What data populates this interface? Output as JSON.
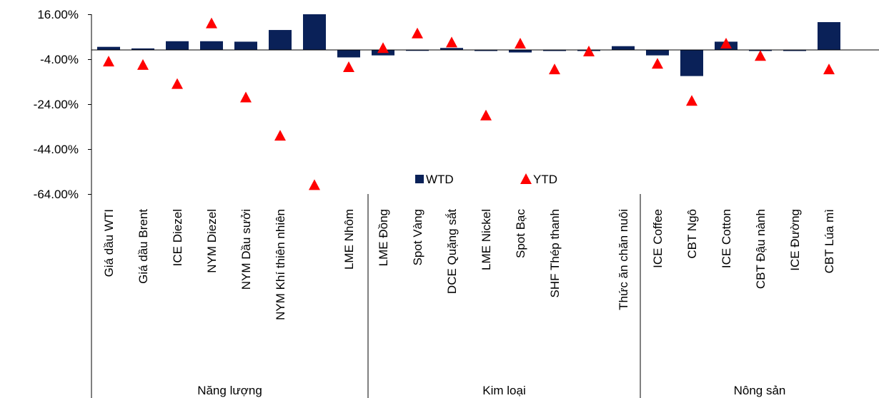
{
  "chart_data": {
    "type": "bar",
    "title": "",
    "xlabel": "",
    "ylabel": "",
    "ylim": [
      -64,
      16
    ],
    "yticks": [
      "16.00%",
      "-4.00%",
      "-24.00%",
      "-44.00%",
      "-64.00%"
    ],
    "ytick_values": [
      16,
      -4,
      -24,
      -44,
      -64
    ],
    "groups": [
      {
        "name": "Năng lượng",
        "categories": [
          "Giá dầu WTI",
          "Giá dầu Brent",
          "ICE Diezel",
          "NYM Diezel",
          "NYM Dầu sưởi",
          "NYM Khí thiên nhiên",
          ""
        ]
      },
      {
        "name": "Kim loại",
        "categories": [
          "LME Nhôm",
          "LME Đồng",
          "Spot Vàng",
          "DCE Quặng sắt",
          "LME Nickel",
          "Spot Bạc",
          "SHF Thép thanh",
          ""
        ]
      },
      {
        "name": "Nông sản",
        "categories": [
          "Thức ăn chăn nuôi",
          "ICE Coffee",
          "CBT Ngô",
          "ICE Cotton",
          "CBT Đậu nành",
          "ICE Đường",
          "CBT Lúa mì"
        ]
      }
    ],
    "series": [
      {
        "name": "WTD",
        "type": "bar",
        "color": "#0a2158",
        "values": [
          1.5,
          0.8,
          4.0,
          4.0,
          3.8,
          9.0,
          16.0,
          -3.2,
          -2.3,
          0.2,
          1.0,
          0.0,
          -1.0,
          0.0,
          0.0,
          1.8,
          -2.3,
          -11.5,
          3.8,
          0.0,
          -0.3,
          12.5
        ]
      },
      {
        "name": "YTD",
        "type": "scatter",
        "color": "#ff0000",
        "marker": "triangle",
        "values": [
          -5.0,
          -6.5,
          -15.0,
          12.0,
          -21.0,
          -38.0,
          -60.0,
          -7.5,
          1.0,
          7.5,
          3.5,
          -29.0,
          3.0,
          -8.5,
          -0.5,
          null,
          -6.0,
          -22.5,
          3.0,
          -2.5,
          null,
          -8.5
        ]
      }
    ],
    "legend": {
      "position": "lower-center",
      "items": [
        "WTD",
        "YTD"
      ]
    }
  }
}
